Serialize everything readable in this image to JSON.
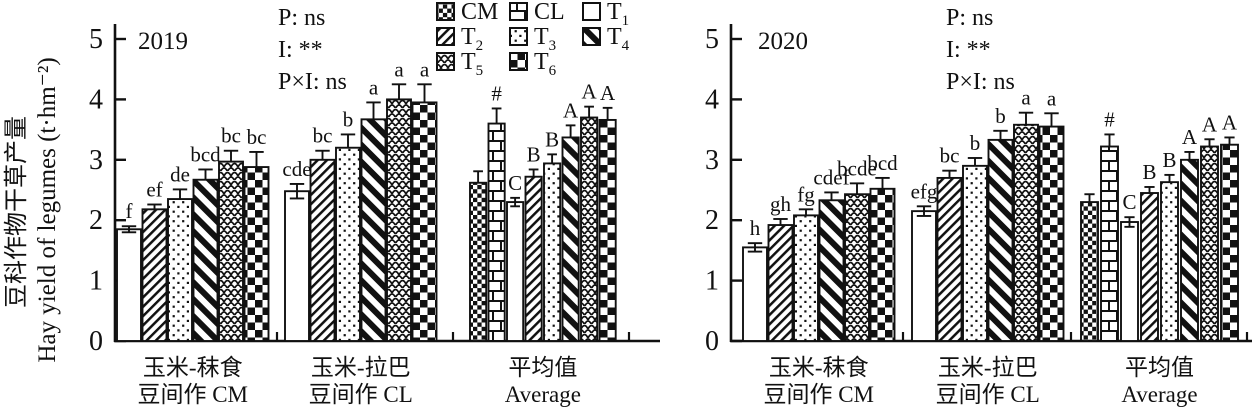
{
  "figure": {
    "y_axis_label_cn": "豆科作物干草产量",
    "y_axis_label_en": "Hay yield of legumes (t·hm⁻²)"
  },
  "legend": [
    {
      "key": "CM",
      "label": "CM",
      "sub": "",
      "pattern": "fine-checker"
    },
    {
      "key": "CL",
      "label": "CL",
      "sub": "",
      "pattern": "brick"
    },
    {
      "key": "T1",
      "label": "T",
      "sub": "1",
      "pattern": "plain"
    },
    {
      "key": "T2",
      "label": "T",
      "sub": "2",
      "pattern": "thin-diagonal"
    },
    {
      "key": "T3",
      "label": "T",
      "sub": "3",
      "pattern": "dots"
    },
    {
      "key": "T4",
      "label": "T",
      "sub": "4",
      "pattern": "thick-diagonal"
    },
    {
      "key": "T5",
      "label": "T",
      "sub": "5",
      "pattern": "fish-scale"
    },
    {
      "key": "T6",
      "label": "T",
      "sub": "6",
      "pattern": "checkerboard"
    }
  ],
  "chart_data": [
    {
      "type": "bar",
      "title": "2019",
      "stats": [
        "P: ns",
        "I: **",
        "P×I: ns"
      ],
      "ylim": [
        0,
        5
      ],
      "yticks": [
        0,
        1,
        2,
        3,
        4,
        5
      ],
      "show_legend": true,
      "categories": [
        {
          "line1": "玉米-秣食",
          "line2": "豆间作 CM"
        },
        {
          "line1": "玉米-拉巴",
          "line2": "豆间作 CL"
        },
        {
          "line1": "平均值",
          "line2": "Average"
        }
      ],
      "groups": [
        {
          "name": "CM",
          "bars": [
            {
              "series": "T1",
              "value": 1.85,
              "err": 0.05,
              "letter": "f"
            },
            {
              "series": "T2",
              "value": 2.18,
              "err": 0.08,
              "letter": "ef"
            },
            {
              "series": "T3",
              "value": 2.35,
              "err": 0.16,
              "letter": "de"
            },
            {
              "series": "T4",
              "value": 2.67,
              "err": 0.17,
              "letter": "bcd"
            },
            {
              "series": "T5",
              "value": 2.97,
              "err": 0.18,
              "letter": "bc"
            },
            {
              "series": "T6",
              "value": 2.88,
              "err": 0.25,
              "letter": "bc"
            }
          ]
        },
        {
          "name": "CL",
          "bars": [
            {
              "series": "T1",
              "value": 2.48,
              "err": 0.12,
              "letter": "cde"
            },
            {
              "series": "T2",
              "value": 3.0,
              "err": 0.15,
              "letter": "bc"
            },
            {
              "series": "T3",
              "value": 3.2,
              "err": 0.22,
              "letter": "b"
            },
            {
              "series": "T4",
              "value": 3.67,
              "err": 0.28,
              "letter": "a"
            },
            {
              "series": "T5",
              "value": 4.0,
              "err": 0.25,
              "letter": "a"
            },
            {
              "series": "T6",
              "value": 3.95,
              "err": 0.3,
              "letter": "a"
            }
          ]
        },
        {
          "name": "Average",
          "bars": [
            {
              "series": "CM",
              "value": 2.62,
              "err": 0.19,
              "letter": ""
            },
            {
              "series": "CL",
              "value": 3.6,
              "err": 0.25,
              "letter": "#"
            },
            {
              "series": "T1",
              "value": 2.3,
              "err": 0.07,
              "letter": "C"
            },
            {
              "series": "T2",
              "value": 2.72,
              "err": 0.12,
              "letter": "B"
            },
            {
              "series": "T3",
              "value": 2.94,
              "err": 0.15,
              "letter": "B"
            },
            {
              "series": "T4",
              "value": 3.37,
              "err": 0.2,
              "letter": "A"
            },
            {
              "series": "T5",
              "value": 3.7,
              "err": 0.18,
              "letter": "A"
            },
            {
              "series": "T6",
              "value": 3.66,
              "err": 0.2,
              "letter": "A"
            }
          ]
        }
      ]
    },
    {
      "type": "bar",
      "title": "2020",
      "stats": [
        "P: ns",
        "I: **",
        "P×I: ns"
      ],
      "ylim": [
        0,
        5
      ],
      "yticks": [
        0,
        1,
        2,
        3,
        4,
        5
      ],
      "show_legend": false,
      "categories": [
        {
          "line1": "玉米-秣食",
          "line2": "豆间作 CM"
        },
        {
          "line1": "玉米-拉巴",
          "line2": "豆间作 CL"
        },
        {
          "line1": "平均值",
          "line2": "Average"
        }
      ],
      "groups": [
        {
          "name": "CM",
          "bars": [
            {
              "series": "T1",
              "value": 1.55,
              "err": 0.07,
              "letter": "h"
            },
            {
              "series": "T2",
              "value": 1.92,
              "err": 0.1,
              "letter": "gh"
            },
            {
              "series": "T3",
              "value": 2.08,
              "err": 0.1,
              "letter": "fg"
            },
            {
              "series": "T4",
              "value": 2.33,
              "err": 0.13,
              "letter": "cdef"
            },
            {
              "series": "T5",
              "value": 2.43,
              "err": 0.18,
              "letter": "bcde"
            },
            {
              "series": "T6",
              "value": 2.52,
              "err": 0.18,
              "letter": "bcd"
            }
          ]
        },
        {
          "name": "CL",
          "bars": [
            {
              "series": "T1",
              "value": 2.15,
              "err": 0.08,
              "letter": "efg"
            },
            {
              "series": "T2",
              "value": 2.7,
              "err": 0.12,
              "letter": "bc"
            },
            {
              "series": "T3",
              "value": 2.9,
              "err": 0.13,
              "letter": "b"
            },
            {
              "series": "T4",
              "value": 3.33,
              "err": 0.15,
              "letter": "b"
            },
            {
              "series": "T5",
              "value": 3.58,
              "err": 0.2,
              "letter": "a"
            },
            {
              "series": "T6",
              "value": 3.55,
              "err": 0.22,
              "letter": "a"
            }
          ]
        },
        {
          "name": "Average",
          "bars": [
            {
              "series": "CM",
              "value": 2.3,
              "err": 0.13,
              "letter": ""
            },
            {
              "series": "CL",
              "value": 3.22,
              "err": 0.2,
              "letter": "#"
            },
            {
              "series": "T1",
              "value": 1.97,
              "err": 0.08,
              "letter": "C"
            },
            {
              "series": "T2",
              "value": 2.45,
              "err": 0.1,
              "letter": "B"
            },
            {
              "series": "T3",
              "value": 2.63,
              "err": 0.12,
              "letter": "B"
            },
            {
              "series": "T4",
              "value": 3.0,
              "err": 0.13,
              "letter": "A"
            },
            {
              "series": "T5",
              "value": 3.22,
              "err": 0.12,
              "letter": "A"
            },
            {
              "series": "T6",
              "value": 3.25,
              "err": 0.12,
              "letter": "A"
            }
          ]
        }
      ]
    }
  ]
}
